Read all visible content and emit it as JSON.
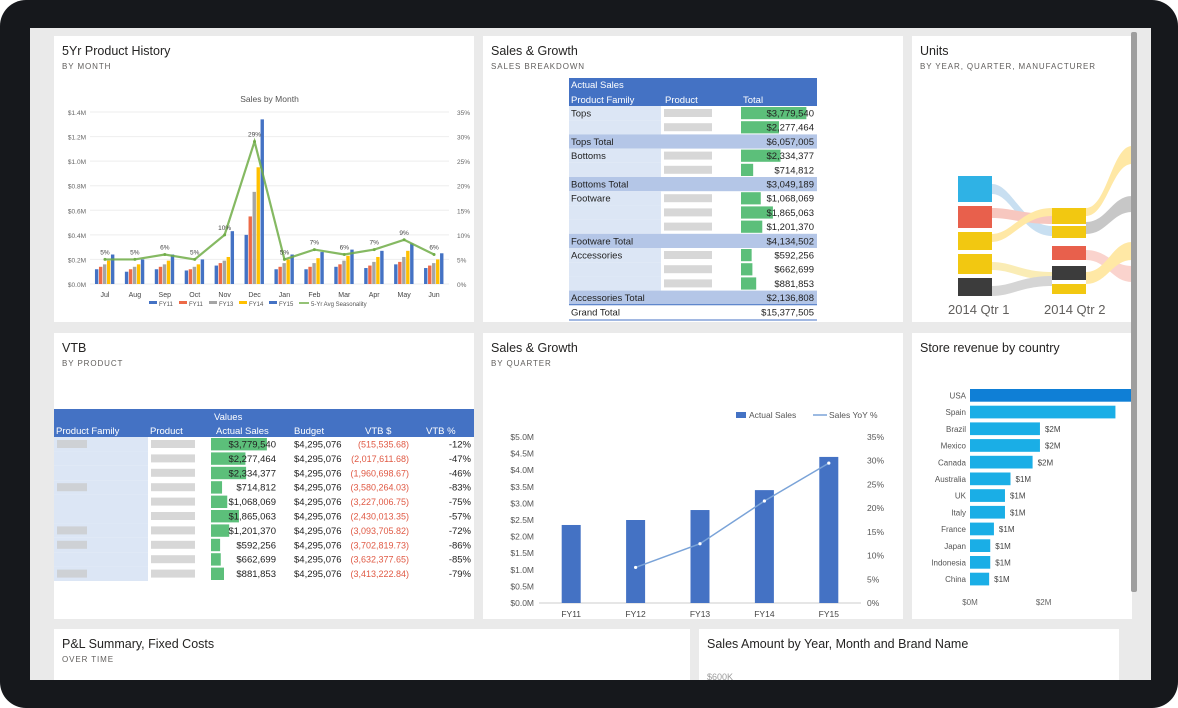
{
  "colors": {
    "accent_blue": "#4472c4",
    "green_bar": "#5cbf7a",
    "red_text": "#e05a45",
    "country_bar": "#1aaee6"
  },
  "tiles": {
    "history": {
      "title": "5Yr Product History",
      "subtitle": "BY MONTH"
    },
    "sales_growth_1": {
      "title": "Sales & Growth",
      "subtitle": "SALES BREAKDOWN"
    },
    "units": {
      "title": "Units",
      "subtitle": "BY YEAR, QUARTER, MANUFACTURER"
    },
    "vtb": {
      "title": "VTB",
      "subtitle": "BY PRODUCT"
    },
    "sales_growth_2": {
      "title": "Sales & Growth",
      "subtitle": "BY QUARTER"
    },
    "store_revenue": {
      "title": "Store revenue by country"
    },
    "pl": {
      "title": "P&L Summary, Fixed Costs",
      "subtitle": "OVER TIME"
    },
    "sales_amount": {
      "title": "Sales Amount by Year, Month and Brand Name",
      "axis_label": "$600K"
    }
  },
  "units_labels": [
    "2014 Qtr 1",
    "2014 Qtr 2"
  ],
  "breakdown": {
    "header_top": "Actual Sales",
    "header_cols": [
      "Product Family",
      "Product",
      "Total"
    ],
    "rows": [
      {
        "family": "Tops",
        "value": "$3,779,540",
        "pct": 0.86
      },
      {
        "family": "",
        "value": "$2,277,464",
        "pct": 0.5
      },
      {
        "family": "Tops Total",
        "value": "$6,057,005",
        "total": true
      },
      {
        "family": "Bottoms",
        "value": "$2,334,377",
        "pct": 0.52
      },
      {
        "family": "",
        "value": "$714,812",
        "pct": 0.16
      },
      {
        "family": "Bottoms Total",
        "value": "$3,049,189",
        "total": true
      },
      {
        "family": "Footware",
        "value": "$1,068,069",
        "pct": 0.26
      },
      {
        "family": "",
        "value": "$1,865,063",
        "pct": 0.42
      },
      {
        "family": "",
        "value": "$1,201,370",
        "pct": 0.28
      },
      {
        "family": "Footware Total",
        "value": "$4,134,502",
        "total": true
      },
      {
        "family": "Accessories",
        "value": "$592,256",
        "pct": 0.14
      },
      {
        "family": "",
        "value": "$662,699",
        "pct": 0.15
      },
      {
        "family": "",
        "value": "$881,853",
        "pct": 0.2
      },
      {
        "family": "Accessories Total",
        "value": "$2,136,808",
        "total": true
      },
      {
        "family": "Grand Total",
        "value": "$15,377,505",
        "grand": true
      }
    ]
  },
  "vtb_table": {
    "header_top": "Values",
    "header_cols": [
      "Product Family",
      "Product",
      "Actual Sales",
      "Budget",
      "VTB $",
      "VTB %"
    ],
    "rows": [
      {
        "actual": "$3,779,540",
        "budget": "$4,295,076",
        "vtb": "(515,535.68)",
        "pct": "-12%",
        "fill": 0.86
      },
      {
        "actual": "$2,277,464",
        "budget": "$4,295,076",
        "vtb": "(2,017,611.68)",
        "pct": "-47%",
        "fill": 0.53
      },
      {
        "actual": "$2,334,377",
        "budget": "$4,295,076",
        "vtb": "(1,960,698.67)",
        "pct": "-46%",
        "fill": 0.54
      },
      {
        "actual": "$714,812",
        "budget": "$4,295,076",
        "vtb": "(3,580,264.03)",
        "pct": "-83%",
        "fill": 0.17
      },
      {
        "actual": "$1,068,069",
        "budget": "$4,295,076",
        "vtb": "(3,227,006.75)",
        "pct": "-75%",
        "fill": 0.25
      },
      {
        "actual": "$1,865,063",
        "budget": "$4,295,076",
        "vtb": "(2,430,013.35)",
        "pct": "-57%",
        "fill": 0.43
      },
      {
        "actual": "$1,201,370",
        "budget": "$4,295,076",
        "vtb": "(3,093,705.82)",
        "pct": "-72%",
        "fill": 0.28
      },
      {
        "actual": "$592,256",
        "budget": "$4,295,076",
        "vtb": "(3,702,819.73)",
        "pct": "-86%",
        "fill": 0.14
      },
      {
        "actual": "$662,699",
        "budget": "$4,295,076",
        "vtb": "(3,632,377.65)",
        "pct": "-85%",
        "fill": 0.15
      },
      {
        "actual": "$881,853",
        "budget": "$4,295,076",
        "vtb": "(3,413,222.84)",
        "pct": "-79%",
        "fill": 0.2
      }
    ]
  },
  "chart_data": [
    {
      "id": "sales_by_month",
      "type": "bar",
      "title": "Sales by Month",
      "categories": [
        "Jul",
        "Aug",
        "Sep",
        "Oct",
        "Nov",
        "Dec",
        "Jan",
        "Feb",
        "Mar",
        "Apr",
        "May",
        "Jun"
      ],
      "y_ticks": [
        "$0.0M",
        "$0.2M",
        "$0.4M",
        "$0.6M",
        "$0.8M",
        "$1.0M",
        "$1.2M",
        "$1.4M"
      ],
      "y2_ticks": [
        "0%",
        "5%",
        "10%",
        "15%",
        "20%",
        "25%",
        "30%",
        "35%"
      ],
      "ylim": [
        0,
        1.4
      ],
      "y2lim": [
        0,
        35
      ],
      "series": [
        {
          "name": "FY11",
          "color": "#4472c4",
          "values": [
            0.12,
            0.1,
            0.12,
            0.11,
            0.15,
            0.4,
            0.12,
            0.12,
            0.14,
            0.13,
            0.16,
            0.13
          ]
        },
        {
          "name": "FY11",
          "color": "#ed6a47",
          "values": [
            0.14,
            0.12,
            0.14,
            0.12,
            0.17,
            0.55,
            0.14,
            0.14,
            0.16,
            0.15,
            0.18,
            0.15
          ]
        },
        {
          "name": "FY13",
          "color": "#a5a5a5",
          "values": [
            0.16,
            0.14,
            0.16,
            0.14,
            0.19,
            0.75,
            0.17,
            0.17,
            0.19,
            0.18,
            0.22,
            0.17
          ]
        },
        {
          "name": "FY14",
          "color": "#ffc000",
          "values": [
            0.19,
            0.16,
            0.19,
            0.16,
            0.22,
            0.95,
            0.2,
            0.21,
            0.23,
            0.22,
            0.27,
            0.2
          ]
        },
        {
          "name": "FY15",
          "color": "#4472c4",
          "values": [
            0.24,
            0.2,
            0.24,
            0.2,
            0.43,
            1.34,
            0.24,
            0.26,
            0.28,
            0.27,
            0.33,
            0.25
          ]
        }
      ],
      "line": {
        "name": "5-Yr Avg Seasonality",
        "color": "#70ad47",
        "values": [
          5,
          5,
          6,
          5,
          10,
          29,
          5,
          7,
          6,
          7,
          9,
          6
        ]
      },
      "line_labels": [
        "5%",
        "5%",
        "6%",
        "5%",
        "10%",
        "29%",
        "5%",
        "7%",
        "6%",
        "7%",
        "9%",
        "6%"
      ]
    },
    {
      "id": "sales_by_quarter",
      "type": "bar",
      "categories": [
        "FY11",
        "FY12",
        "FY13",
        "FY14",
        "FY15"
      ],
      "y_ticks": [
        "$0.0M",
        "$0.5M",
        "$1.0M",
        "$1.5M",
        "$2.0M",
        "$2.5M",
        "$3.0M",
        "$3.5M",
        "$4.0M",
        "$4.5M",
        "$5.0M"
      ],
      "y2_ticks": [
        "0%",
        "5%",
        "10%",
        "15%",
        "20%",
        "25%",
        "30%",
        "35%"
      ],
      "ylim": [
        0,
        5.0
      ],
      "y2lim": [
        0,
        35
      ],
      "series": [
        {
          "name": "Actual Sales",
          "color": "#4472c4",
          "values": [
            2.35,
            2.5,
            2.8,
            3.4,
            4.4
          ]
        }
      ],
      "line": {
        "name": "Sales YoY %",
        "color": "#7aa3d8",
        "values": [
          null,
          7.5,
          12.5,
          21.5,
          29.5
        ]
      }
    },
    {
      "id": "store_revenue",
      "type": "bar",
      "orientation": "horizontal",
      "categories": [
        "USA",
        "Spain",
        "Brazil",
        "Mexico",
        "Canada",
        "Australia",
        "UK",
        "Italy",
        "France",
        "Japan",
        "Indonesia",
        "China"
      ],
      "values": [
        4.4,
        3.95,
        1.9,
        1.9,
        1.7,
        1.1,
        0.95,
        0.95,
        0.65,
        0.55,
        0.55,
        0.52
      ],
      "data_labels": [
        "",
        "",
        "$2M",
        "$2M",
        "$2M",
        "$1M",
        "$1M",
        "$1M",
        "$1M",
        "$1M",
        "$1M",
        "$1M"
      ],
      "x_ticks": [
        "$0M",
        "$2M"
      ],
      "xlim": [
        0,
        4.4
      ]
    }
  ]
}
